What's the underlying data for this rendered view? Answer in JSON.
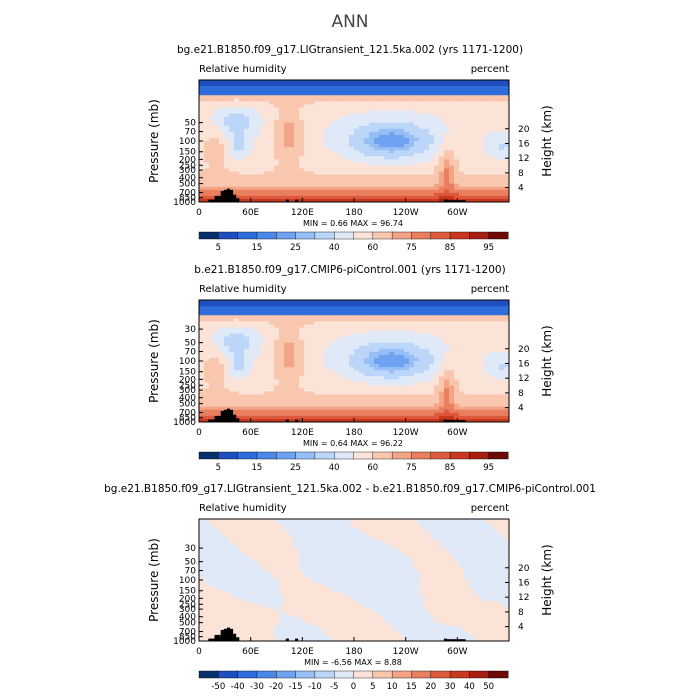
{
  "main_title": "ANN",
  "colors": {
    "rh_levels": [
      "#08306b",
      "#1f4fbf",
      "#2e6ddb",
      "#4a88ea",
      "#6fa3f2",
      "#97bff7",
      "#bcd6fa",
      "#dfe9f7",
      "#fbe3d7",
      "#f9c6ae",
      "#f3a486",
      "#e97f5e",
      "#dc5a3b",
      "#c9381e",
      "#a81e10",
      "#6e0a05"
    ],
    "diff_levels": [
      "#08306b",
      "#1f4fbf",
      "#2e6ddb",
      "#4a88ea",
      "#6fa3f2",
      "#97bff7",
      "#bcd6fa",
      "#dfe9f7",
      "#fbe3d7",
      "#f9c6ae",
      "#f3a486",
      "#e97f5e",
      "#dc5a3b",
      "#c9381e",
      "#a81e10",
      "#6e0a05"
    ],
    "topography": "#000000"
  },
  "chart_data": [
    {
      "type": "heatmap",
      "title": "bg.e21.B1850.f09_g17.LIGtransient_121.5ka.002 (yrs 1171-1200)",
      "variable_label": "Relative humidity",
      "units_label": "percent",
      "ylabel": "Pressure (mb)",
      "ylabel_right": "Height (km)",
      "xticks": [
        "0",
        "60E",
        "120E",
        "180",
        "120W",
        "60W"
      ],
      "yticks_left": [
        "50",
        "70",
        "100",
        "150",
        "200",
        "250",
        "300",
        "400",
        "500",
        "700",
        "850",
        "1000"
      ],
      "yticks_right": [
        "20",
        "16",
        "12",
        "8",
        "4"
      ],
      "stats": "MIN =    0.66   MAX =   96.74",
      "colorbar_labels": [
        "5",
        "15",
        "25",
        "40",
        "60",
        "75",
        "85",
        "95"
      ],
      "mode": "rh",
      "stats_min": 0.66,
      "stats_max": 96.74
    },
    {
      "type": "heatmap",
      "title": "b.e21.B1850.f09_g17.CMIP6-piControl.001 (yrs 1171-1200)",
      "variable_label": "Relative humidity",
      "units_label": "percent",
      "ylabel": "Pressure (mb)",
      "ylabel_right": "Height (km)",
      "xticks": [
        "0",
        "60E",
        "120E",
        "180",
        "120W",
        "60W"
      ],
      "yticks_left": [
        "30",
        "50",
        "70",
        "100",
        "150",
        "200",
        "250",
        "300",
        "400",
        "500",
        "700",
        "850",
        "1000"
      ],
      "yticks_right": [
        "20",
        "16",
        "12",
        "8",
        "4"
      ],
      "stats": "MIN =    0.64   MAX =   96.22",
      "colorbar_labels": [
        "5",
        "15",
        "25",
        "40",
        "60",
        "75",
        "85",
        "95"
      ],
      "mode": "rh",
      "stats_min": 0.64,
      "stats_max": 96.22
    },
    {
      "type": "heatmap",
      "title": "bg.e21.B1850.f09_g17.LIGtransient_121.5ka.002 - b.e21.B1850.f09_g17.CMIP6-piControl.001",
      "variable_label": "Relative humidity",
      "units_label": "percent",
      "ylabel": "Pressure (mb)",
      "ylabel_right": "Height (km)",
      "xticks": [
        "0",
        "60E",
        "120E",
        "180",
        "120W",
        "60W"
      ],
      "yticks_left": [
        "30",
        "50",
        "70",
        "100",
        "150",
        "200",
        "250",
        "300",
        "400",
        "500",
        "700",
        "850",
        "1000"
      ],
      "yticks_right": [
        "20",
        "16",
        "12",
        "8",
        "4"
      ],
      "stats": "MIN =   -6.56   MAX =    8.88",
      "colorbar_labels": [
        "-50",
        "-40",
        "-30",
        "-20",
        "-15",
        "-10",
        "-5",
        "0",
        "5",
        "10",
        "15",
        "20",
        "30",
        "40",
        "50"
      ],
      "mode": "diff",
      "stats_min": -6.56,
      "stats_max": 8.88
    }
  ]
}
